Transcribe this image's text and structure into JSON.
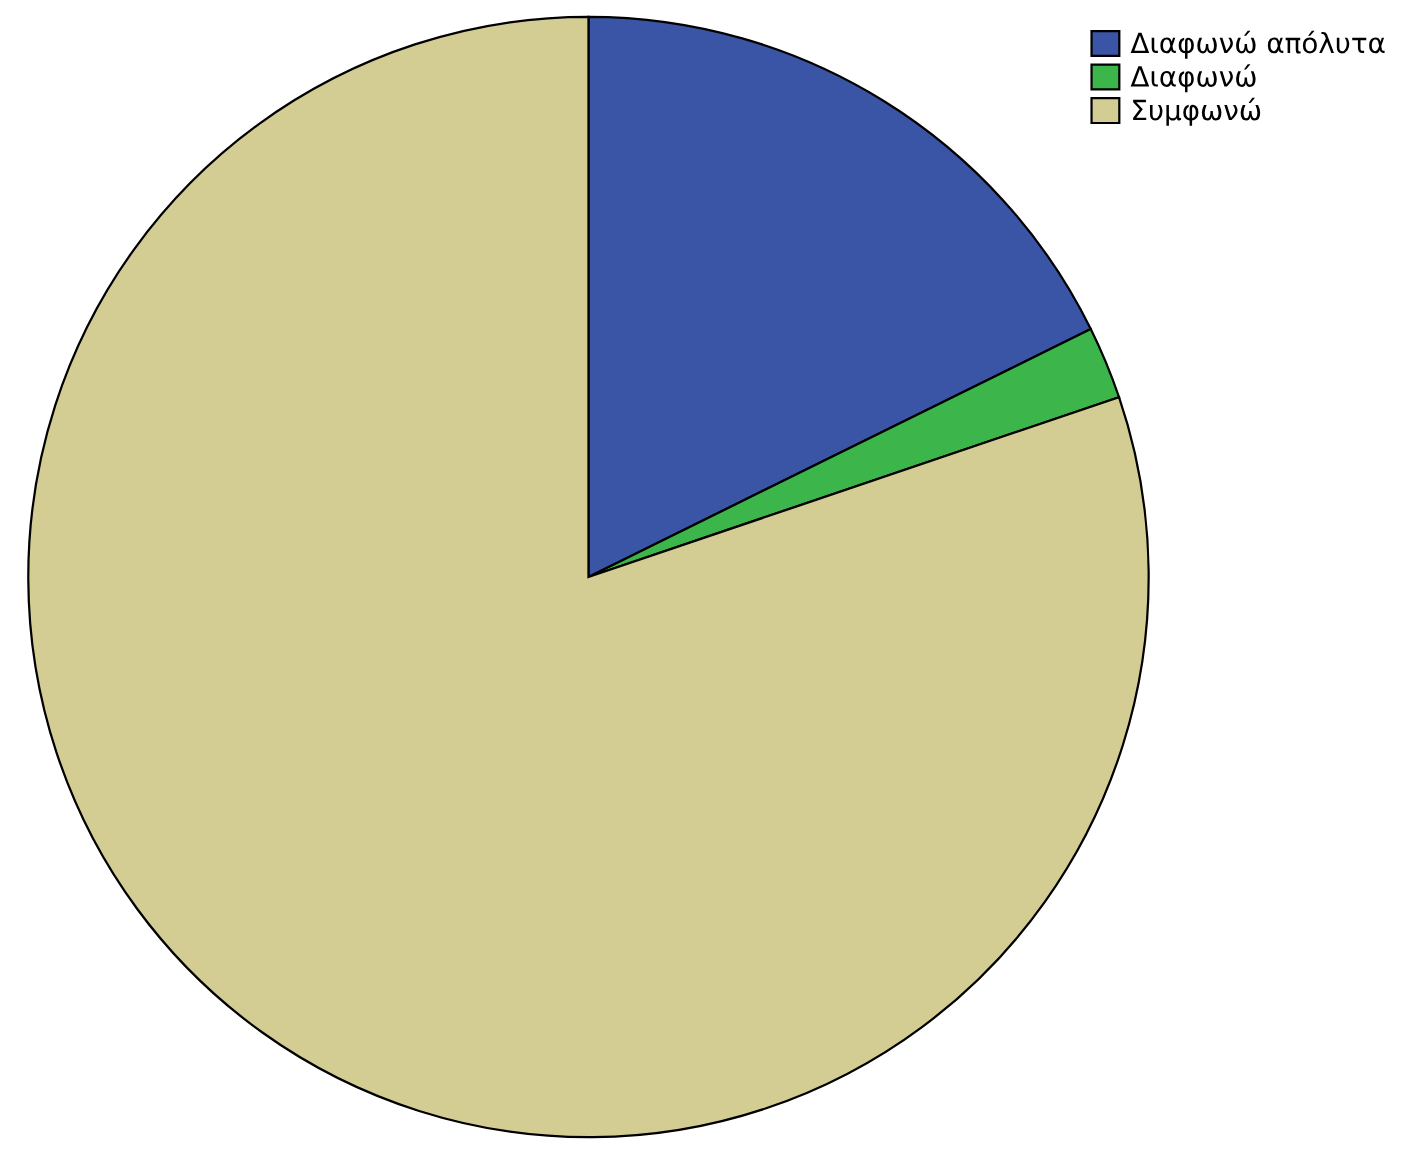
{
  "chart_data": {
    "type": "pie",
    "categories": [
      "Διαφωνώ απόλυτα",
      "Διαφωνώ",
      "Συμφωνώ"
    ],
    "values": [
      17.7,
      2.1,
      80.2
    ],
    "colors": [
      "#3a55a5",
      "#3cb54a",
      "#d3cd94"
    ],
    "legend": "top right"
  }
}
